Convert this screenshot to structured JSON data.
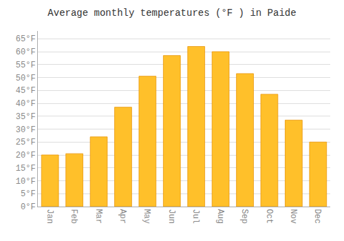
{
  "chart_data": {
    "type": "bar",
    "title": "Average monthly temperatures (°F ) in Paide",
    "categories": [
      "Jan",
      "Feb",
      "Mar",
      "Apr",
      "May",
      "Jun",
      "Jul",
      "Aug",
      "Sep",
      "Oct",
      "Nov",
      "Dec"
    ],
    "values": [
      20,
      20.5,
      27,
      38.5,
      50.5,
      58.5,
      62,
      60,
      51.5,
      43.5,
      33.5,
      25
    ],
    "color": "#FFC02A",
    "ylim": [
      0,
      68
    ],
    "yticks": [
      {
        "value": 0,
        "label": "0°F"
      },
      {
        "value": 5,
        "label": "5°F"
      },
      {
        "value": 10,
        "label": "10°F"
      },
      {
        "value": 15,
        "label": "15°F"
      },
      {
        "value": 20,
        "label": "20°F"
      },
      {
        "value": 25,
        "label": "25°F"
      },
      {
        "value": 30,
        "label": "30°F"
      },
      {
        "value": 35,
        "label": "35°F"
      },
      {
        "value": 40,
        "label": "40°F"
      },
      {
        "value": 45,
        "label": "45°F"
      },
      {
        "value": 50,
        "label": "50°F"
      },
      {
        "value": 55,
        "label": "55°F"
      },
      {
        "value": 60,
        "label": "60°F"
      },
      {
        "value": 65,
        "label": "65°F"
      }
    ],
    "grid": true
  }
}
